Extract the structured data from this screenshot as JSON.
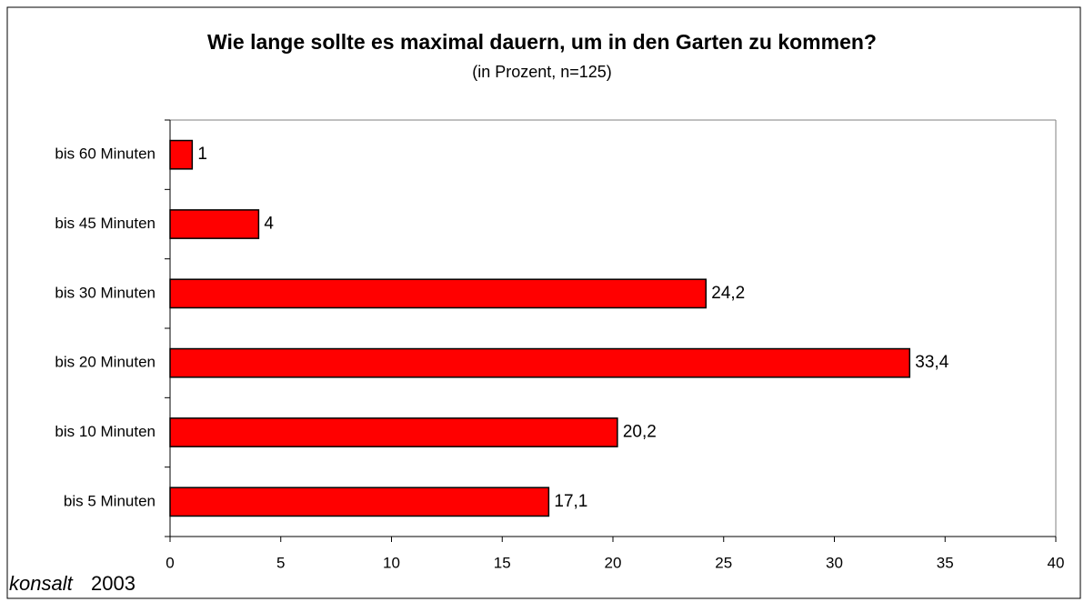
{
  "chart_data": {
    "type": "bar",
    "orientation": "horizontal",
    "title": "Wie lange sollte es maximal dauern, um in den Garten zu kommen?",
    "subtitle": "(in Prozent, n=125)",
    "categories": [
      "bis 60 Minuten",
      "bis 45 Minuten",
      "bis 30 Minuten",
      "bis 20 Minuten",
      "bis 10 Minuten",
      "bis 5 Minuten"
    ],
    "values": [
      1,
      4,
      24.2,
      33.4,
      20.2,
      17.1
    ],
    "value_labels": [
      "1",
      "4",
      "24,2",
      "33,4",
      "20,2",
      "17,1"
    ],
    "color": "#ff0000",
    "xlim": [
      0,
      40
    ],
    "xticks": [
      0,
      5,
      10,
      15,
      20,
      25,
      30,
      35,
      40
    ],
    "grid": false
  },
  "footer": {
    "brand": "konsalt",
    "year": "2003"
  }
}
